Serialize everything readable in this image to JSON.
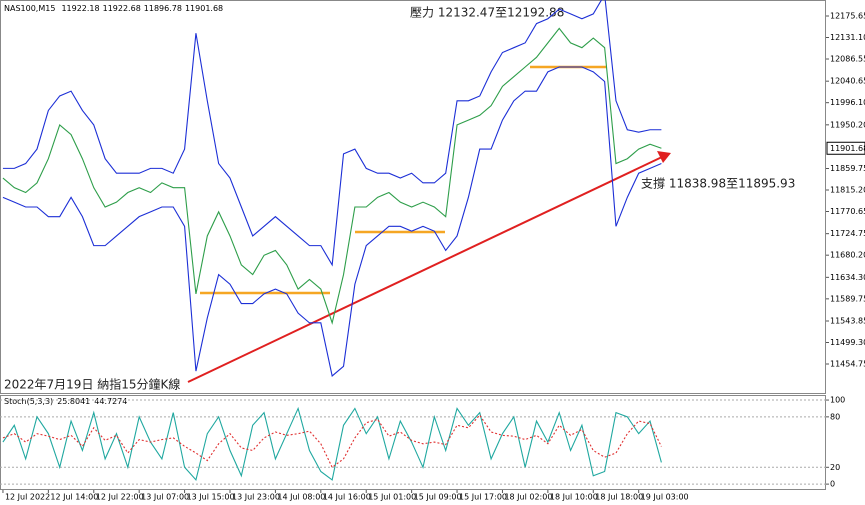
{
  "chart_data": [
    {
      "type": "line",
      "title": "NAS100,M15",
      "ohlc": [
        11922.18,
        11922.68,
        11896.78,
        11901.68
      ],
      "annotations": [
        "壓力 12132.47至12192.88",
        "支撐 11838.98至11895.93",
        "2022年7月19日 納指15分鐘K線"
      ],
      "xlim": [
        -0.26,
        72.5
      ],
      "ylim": [
        11394.7,
        12208.8
      ],
      "yticks": [
        12175.65,
        {
          "value": 12131.1,
          "label": "12131.10"
        },
        12086.55,
        12040.65,
        {
          "value": 11996.1,
          "label": "11996.10"
        },
        {
          "value": 11950.2,
          "label": "11950.20"
        },
        11859.75,
        {
          "value": 11815.2,
          "label": "11815.20"
        },
        11770.65,
        11724.75,
        {
          "value": 11680.2,
          "label": "11680.20"
        },
        {
          "value": 11634.3,
          "label": "11634.30"
        },
        11589.75,
        11543.85,
        {
          "value": 11499.3,
          "label": "11499.30"
        },
        11454.75
      ],
      "series": [
        {
          "color": "#2e9e4a",
          "values": [
            11840,
            11820,
            11810,
            11830,
            11880,
            11950,
            11930,
            11880,
            11820,
            11780,
            11790,
            11810,
            11820,
            11810,
            11830,
            11820,
            11820,
            11600,
            11720,
            11770,
            11720,
            11660,
            11640,
            11680,
            11690,
            11660,
            11610,
            11630,
            11610,
            11540,
            11640,
            11780,
            11780,
            11800,
            11810,
            11790,
            11780,
            11790,
            11780,
            11760,
            11950,
            11960,
            11970,
            11990,
            12030,
            12050,
            12070,
            12090,
            12120,
            12150,
            12120,
            12110,
            12130,
            12110,
            11870,
            11880,
            11900,
            11910,
            11901.68
          ]
        },
        {
          "color": "#1c2fd6",
          "values": [
            11860,
            11860,
            11870,
            11900,
            11980,
            12010,
            12020,
            11980,
            11950,
            11880,
            11850,
            11850,
            11850,
            11860,
            11860,
            11850,
            11900,
            12140,
            12000,
            11870,
            11840,
            11780,
            11720,
            11740,
            11760,
            11740,
            11720,
            11700,
            11700,
            11660,
            11890,
            11900,
            11860,
            11850,
            11850,
            11840,
            11850,
            11830,
            11830,
            11850,
            12000,
            12000,
            12010,
            12060,
            12100,
            12110,
            12120,
            12160,
            12170,
            12190,
            12180,
            12170,
            12180,
            12220,
            12000,
            11940,
            11935,
            11940,
            11940
          ]
        },
        {
          "color": "#1c2fd6",
          "values": [
            11800,
            11790,
            11780,
            11780,
            11760,
            11760,
            11800,
            11760,
            11700,
            11700,
            11720,
            11740,
            11760,
            11770,
            11780,
            11780,
            11740,
            11440,
            11550,
            11640,
            11620,
            11580,
            11580,
            11600,
            11610,
            11600,
            11560,
            11540,
            11540,
            11430,
            11450,
            11620,
            11700,
            11720,
            11740,
            11740,
            11730,
            11740,
            11730,
            11690,
            11720,
            11800,
            11900,
            11900,
            11960,
            12000,
            12020,
            12020,
            12060,
            12070,
            12070,
            12070,
            12060,
            12040,
            11740,
            11800,
            11850,
            11860,
            11870
          ]
        }
      ]
    },
    {
      "type": "line",
      "title": "Stoch(5,3,3)",
      "xlim": [
        -0.26,
        72.5
      ],
      "ylim": [
        -7,
        106
      ],
      "yticks": [
        100,
        80,
        20,
        0
      ],
      "grid": true,
      "xticks": [
        {
          "value": 0,
          "label": "12 Jul 2022"
        },
        {
          "value": 4,
          "label": "12 Jul 14:00"
        },
        {
          "value": 8,
          "label": "12 Jul 22:00"
        },
        {
          "value": 12,
          "label": "13 Jul 07:00"
        },
        {
          "value": 16,
          "label": "13 Jul 15:00"
        },
        {
          "value": 20,
          "label": "13 Jul 23:00"
        },
        {
          "value": 24,
          "label": "14 Jul 08:00"
        },
        {
          "value": 28,
          "label": "14 Jul 16:00"
        },
        {
          "value": 32,
          "label": "15 Jul 01:00"
        },
        {
          "value": 36,
          "label": "15 Jul 09:00"
        },
        {
          "value": 40,
          "label": "15 Jul 17:00"
        },
        {
          "value": 44,
          "label": "18 Jul 02:00"
        },
        {
          "value": 48,
          "label": "18 Jul 10:00"
        },
        {
          "value": 52,
          "label": "18 Jul 18:00"
        },
        {
          "value": 56,
          "label": "19 Jul 03:00"
        }
      ],
      "series": [
        {
          "color": "#20a8a0",
          "dash": false,
          "values": [
            50,
            70,
            30,
            80,
            60,
            20,
            75,
            40,
            85,
            30,
            60,
            20,
            80,
            50,
            30,
            85,
            20,
            5,
            60,
            80,
            40,
            10,
            70,
            85,
            30,
            60,
            90,
            40,
            15,
            5,
            70,
            90,
            60,
            80,
            30,
            75,
            50,
            20,
            80,
            40,
            90,
            70,
            85,
            30,
            60,
            80,
            20,
            75,
            50,
            85,
            40,
            70,
            10,
            15,
            85,
            80,
            60,
            75,
            25.8041
          ]
        },
        {
          "color": "#e03030",
          "dash": true,
          "values": [
            55,
            60,
            50,
            60,
            57,
            53,
            58,
            45,
            67,
            52,
            58,
            37,
            53,
            50,
            53,
            55,
            45,
            37,
            28,
            48,
            60,
            43,
            40,
            55,
            62,
            58,
            60,
            63,
            48,
            20,
            30,
            55,
            73,
            77,
            57,
            62,
            52,
            48,
            50,
            47,
            70,
            67,
            82,
            62,
            58,
            57,
            53,
            58,
            48,
            70,
            58,
            65,
            40,
            32,
            37,
            60,
            75,
            72,
            44.7274
          ]
        }
      ]
    }
  ]
}
